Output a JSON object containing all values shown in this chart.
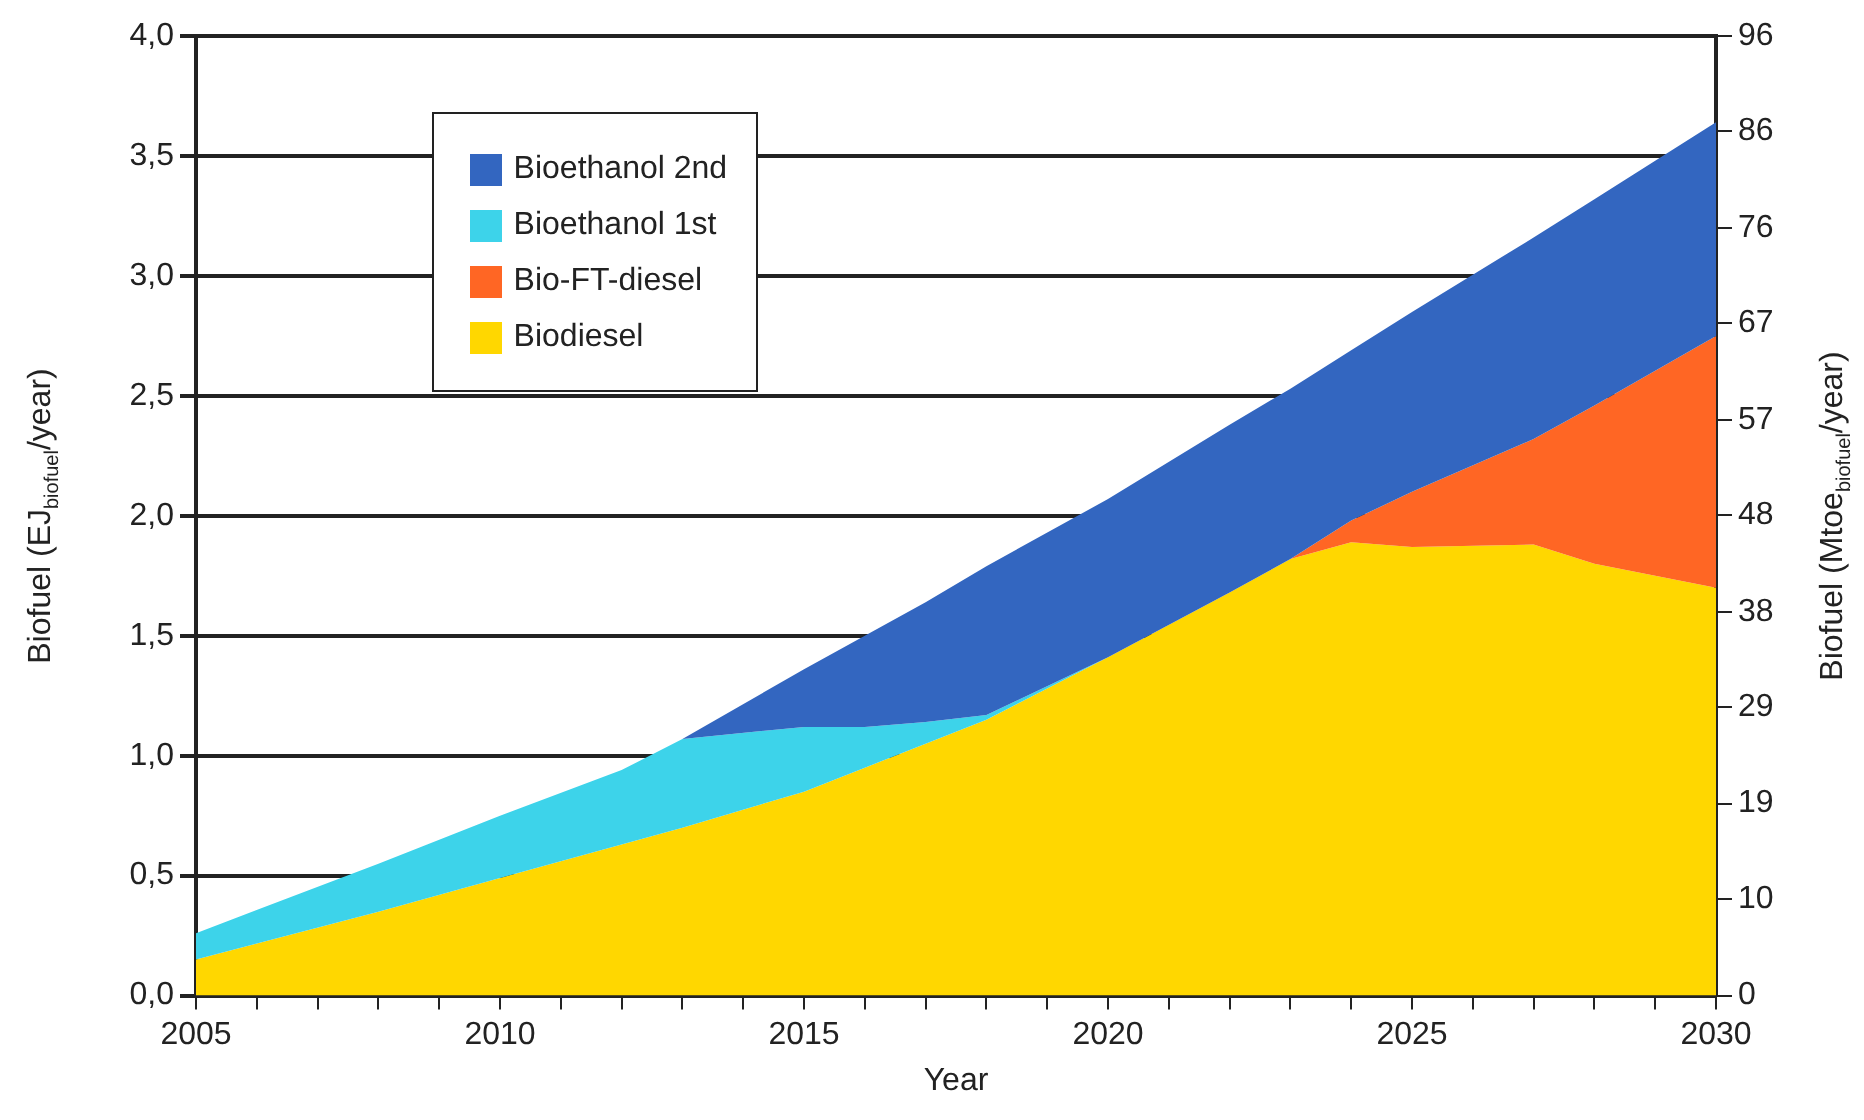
{
  "chart_data": {
    "type": "area",
    "stacked": true,
    "xlabel": "Year",
    "ylabel": "Biofuel (EJ$_{biofuel}$/year)",
    "y2label": "Biofuel (Mtoe$_{biofuel}$/year)",
    "x": [
      2005,
      2008,
      2010,
      2012,
      2013,
      2015,
      2016,
      2017,
      2018,
      2020,
      2022,
      2023,
      2024,
      2025,
      2027,
      2028,
      2030
    ],
    "series": [
      {
        "name": "Biodiesel",
        "color": "#ffd700",
        "values": [
          0.15,
          0.35,
          0.49,
          0.63,
          0.7,
          0.85,
          0.95,
          1.05,
          1.15,
          1.41,
          1.68,
          1.82,
          1.89,
          1.87,
          1.88,
          1.8,
          1.7
        ]
      },
      {
        "name": "Bio-FT-diesel",
        "color": "#ff6624",
        "values": [
          null,
          null,
          null,
          null,
          null,
          null,
          null,
          null,
          null,
          null,
          null,
          0,
          0.09,
          0.23,
          0.44,
          0.66,
          1.05
        ]
      },
      {
        "name": "Bioethanol 1st",
        "color": "#3dd3ea",
        "values": [
          0.11,
          0.2,
          0.26,
          0.31,
          0.37,
          0.27,
          0.17,
          0.09,
          0.02,
          0,
          null,
          null,
          null,
          null,
          null,
          null,
          null
        ]
      },
      {
        "name": "Bioethanol 2nd",
        "color": "#3366c0",
        "values": [
          null,
          null,
          null,
          null,
          0,
          0.24,
          0.38,
          0.5,
          0.62,
          0.66,
          0.7,
          0.71,
          0.71,
          0.75,
          0.84,
          0.86,
          0.89
        ]
      }
    ],
    "xlim": [
      2005,
      2030
    ],
    "xticks": [
      2005,
      {
        "value": 2006,
        "label": null
      },
      {
        "value": 2007,
        "label": null
      },
      {
        "value": 2008,
        "label": null
      },
      {
        "value": 2009,
        "label": null
      },
      2010,
      {
        "value": 2011,
        "label": null
      },
      {
        "value": 2012,
        "label": null
      },
      {
        "value": 2013,
        "label": null
      },
      {
        "value": 2014,
        "label": null
      },
      2015,
      {
        "value": 2016,
        "label": null
      },
      {
        "value": 2017,
        "label": null
      },
      {
        "value": 2018,
        "label": null
      },
      {
        "value": 2019,
        "label": null
      },
      2020,
      {
        "value": 2021,
        "label": null
      },
      {
        "value": 2022,
        "label": null
      },
      {
        "value": 2023,
        "label": null
      },
      {
        "value": 2024,
        "label": null
      },
      2025,
      {
        "value": 2026,
        "label": null
      },
      {
        "value": 2027,
        "label": null
      },
      {
        "value": 2028,
        "label": null
      },
      {
        "value": 2029,
        "label": null
      },
      2030
    ],
    "ylim": [
      0,
      4
    ],
    "yticks": [
      {
        "value": 0,
        "label": "0,0"
      },
      {
        "value": 0.5,
        "label": "0,5"
      },
      {
        "value": 1,
        "label": "1,0"
      },
      {
        "value": 1.5,
        "label": "1,5"
      },
      {
        "value": 2,
        "label": "2,0"
      },
      {
        "value": 2.5,
        "label": "2,5"
      },
      {
        "value": 3,
        "label": "3,0"
      },
      {
        "value": 3.5,
        "label": "3,5"
      },
      {
        "value": 4,
        "label": "4,0"
      }
    ],
    "y2lim": [
      0,
      95.5
    ],
    "y2ticks": [
      0,
      {
        "value": 9.6,
        "label": "10"
      },
      {
        "value": 19.1,
        "label": "19"
      },
      {
        "value": 28.7,
        "label": "29"
      },
      {
        "value": 38.2,
        "label": "38"
      },
      {
        "value": 47.8,
        "label": "48"
      },
      {
        "value": 57.3,
        "label": "57"
      },
      {
        "value": 66.9,
        "label": "67"
      },
      {
        "value": 76.4,
        "label": "76"
      },
      {
        "value": 86.0,
        "label": "86"
      },
      {
        "value": 95.5,
        "label": "96"
      }
    ],
    "grid": "y",
    "legend": "top left",
    "marker": "none"
  }
}
